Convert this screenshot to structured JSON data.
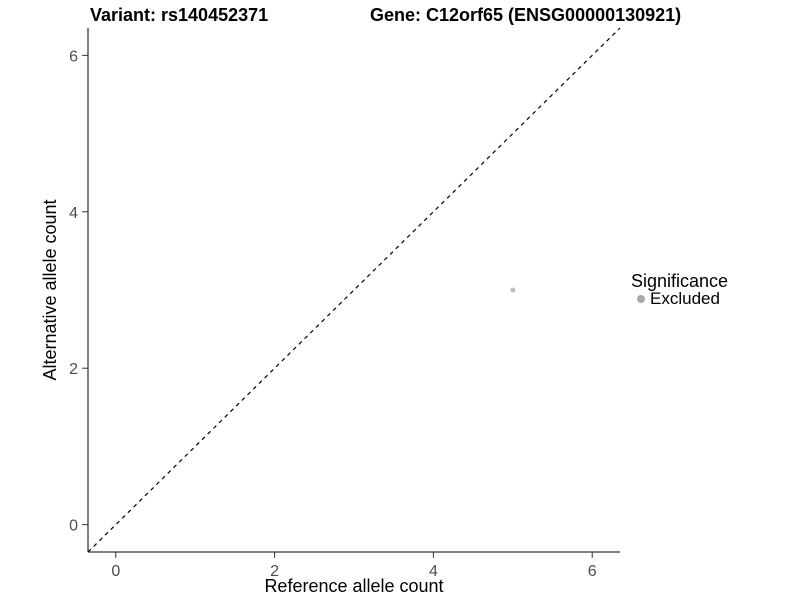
{
  "chart_data": {
    "type": "scatter",
    "title_left": "Variant: rs140452371",
    "title_right": "Gene: C12orf65 (ENSG00000130921)",
    "xlabel": "Reference allele count",
    "ylabel": "Alternative allele count",
    "xlim": [
      -0.35,
      6.35
    ],
    "ylim": [
      -0.35,
      6.35
    ],
    "xticks": [
      0,
      2,
      4,
      6
    ],
    "yticks": [
      0,
      2,
      4,
      6
    ],
    "grid": false,
    "background_color": "#ffffff",
    "axis_color": "#000000",
    "tick_color": "#333333",
    "tick_label_color": "#4d4d4d",
    "point_color": "#bebebe",
    "point_radius_px": 2.5,
    "points": [
      {
        "x": 5,
        "y": 3,
        "significance": "Excluded"
      }
    ],
    "identity_line": {
      "slope": 1,
      "intercept": 0,
      "style": "dashed",
      "color": "#000000"
    },
    "legend": {
      "position": "right",
      "title": "Significance",
      "items": [
        {
          "label": "Excluded",
          "color": "#a8a8a8"
        }
      ]
    }
  }
}
